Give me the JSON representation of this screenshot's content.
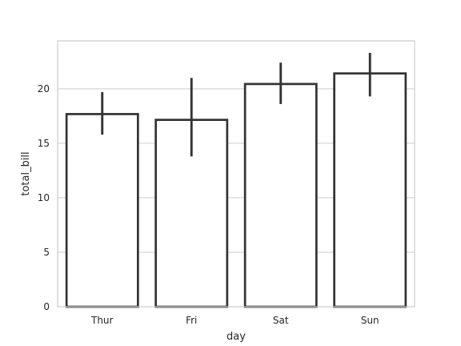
{
  "chart_data": {
    "type": "bar",
    "xlabel": "day",
    "ylabel": "total_bill",
    "categories": [
      "Thur",
      "Fri",
      "Sat",
      "Sun"
    ],
    "values": [
      17.68,
      17.15,
      20.44,
      21.41
    ],
    "ci_low": [
      15.8,
      13.8,
      18.6,
      19.3
    ],
    "ci_high": [
      19.7,
      21.0,
      22.4,
      23.3
    ],
    "ylim": [
      0,
      24.4
    ],
    "yticks": [
      "0",
      "5",
      "10",
      "15",
      "20"
    ],
    "ytick_values": [
      0,
      5,
      10,
      15,
      20
    ],
    "grid": true,
    "colors": {
      "bar_fill": "#ffffff",
      "bar_edge": "#333333",
      "errorbar": "#333333",
      "grid": "#cccccc",
      "frame": "#cccccc",
      "text": "#262626"
    }
  }
}
